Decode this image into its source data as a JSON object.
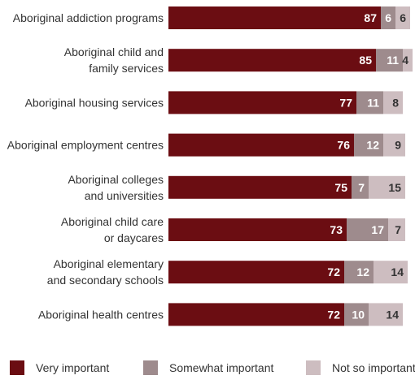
{
  "colors": {
    "very": "#6b0d12",
    "somewhat": "#9e8b8d",
    "notso": "#cdbdc0"
  },
  "chart_data": {
    "type": "bar",
    "orientation": "horizontal",
    "stacked": true,
    "title": "",
    "xlabel": "",
    "ylabel": "",
    "xlim": [
      0,
      100
    ],
    "grid": false,
    "legend_position": "bottom",
    "categories": [
      [
        "Aboriginal addiction programs"
      ],
      [
        "Aboriginal child and",
        "family services"
      ],
      [
        "Aboriginal housing services"
      ],
      [
        "Aboriginal employment centres"
      ],
      [
        "Aboriginal colleges",
        "and universities"
      ],
      [
        "Aboriginal child care",
        "or daycares"
      ],
      [
        "Aboriginal elementary",
        "and secondary schools"
      ],
      [
        "Aboriginal health centres"
      ]
    ],
    "series": [
      {
        "name": "Very important",
        "color_key": "very",
        "values": [
          87,
          85,
          77,
          76,
          75,
          73,
          72,
          72
        ]
      },
      {
        "name": "Somewhat important",
        "color_key": "somewhat",
        "values": [
          6,
          11,
          11,
          12,
          7,
          17,
          12,
          10
        ]
      },
      {
        "name": "Not so important",
        "color_key": "notso",
        "values": [
          6,
          4,
          8,
          9,
          15,
          7,
          14,
          14
        ]
      }
    ]
  }
}
